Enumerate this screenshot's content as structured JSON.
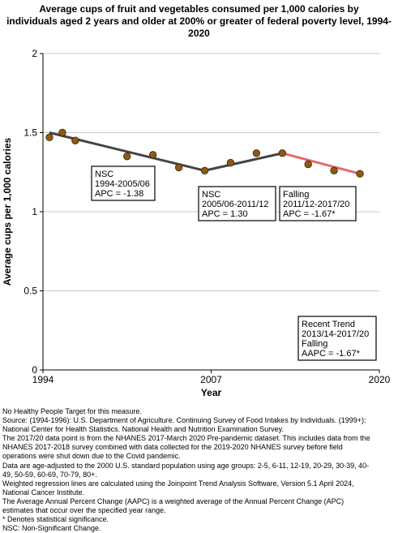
{
  "chart_data": {
    "type": "line",
    "title": [
      "Average cups of fruit and vegetables consumed per 1,000 calories by",
      "individuals aged 2 years and older at 200% or greater of federal poverty level, 1994-",
      "2020"
    ],
    "xlabel": "Year",
    "ylabel": "Average cups per 1,000 calories",
    "xlim": [
      1994,
      2020
    ],
    "ylim": [
      0,
      2
    ],
    "x_ticks": [
      "1994",
      "2007",
      "2020"
    ],
    "y_ticks": [
      "0",
      "0.5",
      "1",
      "1.5",
      "2"
    ],
    "grid": true,
    "points": {
      "x": [
        1994.5,
        1995.5,
        1996.5,
        2000.5,
        2002.5,
        2004.5,
        2006.5,
        2008.5,
        2010.5,
        2012.5,
        2014.5,
        2016.5,
        2018.5
      ],
      "y": [
        1.47,
        1.5,
        1.45,
        1.35,
        1.36,
        1.28,
        1.26,
        1.31,
        1.37,
        1.37,
        1.3,
        1.26,
        1.24
      ]
    },
    "trend_segments": [
      {
        "x": [
          1994.5,
          2006.5
        ],
        "y": [
          1.5,
          1.26
        ],
        "color": "#444444"
      },
      {
        "x": [
          2006.5,
          2012.5
        ],
        "y": [
          1.26,
          1.37
        ],
        "color": "#444444"
      },
      {
        "x": [
          2012.5,
          2018.5
        ],
        "y": [
          1.37,
          1.24
        ],
        "color": "#e46a6a"
      }
    ],
    "marker_color": "#8b5a14",
    "annotations": [
      {
        "lines": [
          "NSC",
          "1994-2005/06",
          "APC = -1.38"
        ]
      },
      {
        "lines": [
          "NSC",
          "2005/06-2011/12",
          "APC =  1.30"
        ]
      },
      {
        "lines": [
          "Falling",
          "2011/12-2017/20",
          "APC = -1.67*"
        ]
      },
      {
        "lines": [
          "Recent Trend",
          "2013/14-2017/20",
          "Falling",
          "AAPC = -1.67*"
        ]
      }
    ]
  },
  "footnotes": [
    "No Healthy People Target for this measure.",
    "Source: (1994-1996): U.S. Department of Agriculture. Continuing Survey of Food Intakes by Individuals. (1999+):",
    "National Center for Health Statistics. National Health and Nutrition Examination Survey.",
    "The 2017/20 data point is from the NHANES 2017-March 2020 Pre-pandemic dataset. This includes data from the",
    "NHANES 2017-2018 survey combined with data collected for the 2019-2020 NHANES survey before field",
    "operations were shut down due to the Covid pandemic.",
    "Data are age-adjusted to the 2000 U.S. standard population using age groups: 2-5, 6-11, 12-19, 20-29, 30-39, 40-",
    "49, 50-59, 60-69, 70-79, 80+.",
    "Weighted regression lines are calculated using the Joinpoint Trend Analysis Software, Version 5.1 April 2024,",
    "National Cancer Institute.",
    "The Average Annual Percent Change (AAPC) is a weighted average of the Annual Percent Change (APC)",
    "estimates that occur over the specified year range.",
    "* Denotes statistical significance.",
    "NSC: Non-Significant Change."
  ]
}
